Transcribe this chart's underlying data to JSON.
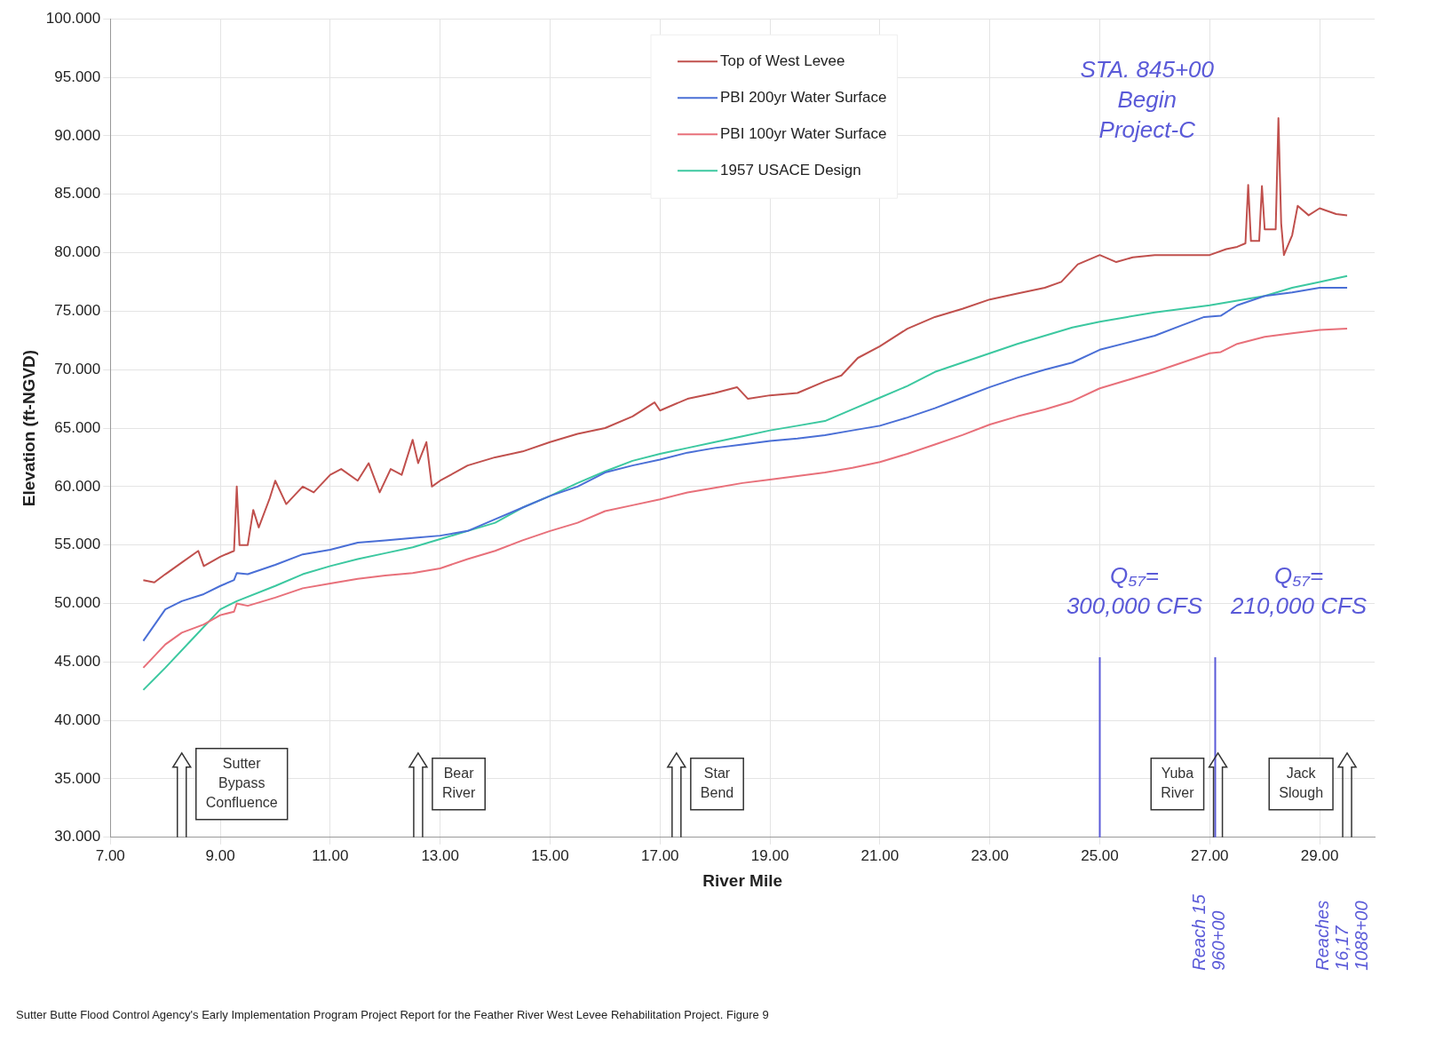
{
  "chart_data": {
    "type": "line",
    "xlabel": "River Mile",
    "ylabel": "Elevation (ft-NGVD)",
    "xlim": [
      7,
      30
    ],
    "ylim": [
      30,
      100
    ],
    "xticks": [
      {
        "value": 7,
        "label": "7.00"
      },
      {
        "value": 9,
        "label": "9.00"
      },
      {
        "value": 11,
        "label": "11.00"
      },
      {
        "value": 13,
        "label": "13.00"
      },
      {
        "value": 15,
        "label": "15.00"
      },
      {
        "value": 17,
        "label": "17.00"
      },
      {
        "value": 19,
        "label": "19.00"
      },
      {
        "value": 21,
        "label": "21.00"
      },
      {
        "value": 23,
        "label": "23.00"
      },
      {
        "value": 25,
        "label": "25.00"
      },
      {
        "value": 27,
        "label": "27.00"
      },
      {
        "value": 29,
        "label": "29.00"
      }
    ],
    "yticks": [
      {
        "value": 30,
        "label": "30.000"
      },
      {
        "value": 35,
        "label": "35.000"
      },
      {
        "value": 40,
        "label": "40.000"
      },
      {
        "value": 45,
        "label": "45.000"
      },
      {
        "value": 50,
        "label": "50.000"
      },
      {
        "value": 55,
        "label": "55.000"
      },
      {
        "value": 60,
        "label": "60.000"
      },
      {
        "value": 65,
        "label": "65.000"
      },
      {
        "value": 70,
        "label": "70.000"
      },
      {
        "value": 75,
        "label": "75.000"
      },
      {
        "value": 80,
        "label": "80.000"
      },
      {
        "value": 85,
        "label": "85.000"
      },
      {
        "value": 90,
        "label": "90.000"
      },
      {
        "value": 95,
        "label": "95.000"
      },
      {
        "value": 100,
        "label": "100.000"
      }
    ],
    "grid": true,
    "legend": "top",
    "marker": "none",
    "line_style": "solid",
    "series": [
      {
        "name": "Top of West Levee",
        "color": "#c0504d",
        "x": [
          7.6,
          7.8,
          8.0,
          8.3,
          8.6,
          8.7,
          9.0,
          9.25,
          9.3,
          9.35,
          9.5,
          9.6,
          9.7,
          9.9,
          10.0,
          10.2,
          10.5,
          10.7,
          11.0,
          11.2,
          11.5,
          11.7,
          11.9,
          12.1,
          12.3,
          12.5,
          12.6,
          12.75,
          12.85,
          13.0,
          13.5,
          14.0,
          14.5,
          15.0,
          15.5,
          16.0,
          16.5,
          16.9,
          17.0,
          17.5,
          18.0,
          18.4,
          18.6,
          19.0,
          19.5,
          20.0,
          20.3,
          20.6,
          21.0,
          21.5,
          22.0,
          22.5,
          23.0,
          23.5,
          24.0,
          24.3,
          24.6,
          25.0,
          25.3,
          25.6,
          26.0,
          26.5,
          27.0,
          27.3,
          27.5,
          27.65,
          27.7,
          27.75,
          27.9,
          27.95,
          28.0,
          28.2,
          28.25,
          28.3,
          28.35,
          28.5,
          28.6,
          28.8,
          29.0,
          29.3,
          29.5
        ],
        "values": [
          52.0,
          51.8,
          52.5,
          53.5,
          54.5,
          53.2,
          54.0,
          54.5,
          60.0,
          55.0,
          55.0,
          58.0,
          56.5,
          59.0,
          60.5,
          58.5,
          60.0,
          59.5,
          61.0,
          61.5,
          60.5,
          62.0,
          59.5,
          61.5,
          61.0,
          64.0,
          62.0,
          63.8,
          60.0,
          60.5,
          61.8,
          62.5,
          63.0,
          63.8,
          64.5,
          65.0,
          66.0,
          67.2,
          66.5,
          67.5,
          68.0,
          68.5,
          67.5,
          67.8,
          68.0,
          69.0,
          69.5,
          71.0,
          72.0,
          73.5,
          74.5,
          75.2,
          76.0,
          76.5,
          77.0,
          77.5,
          79.0,
          79.8,
          79.2,
          79.6,
          79.8,
          79.8,
          79.8,
          80.3,
          80.5,
          80.8,
          85.8,
          81.0,
          81.0,
          85.7,
          82.0,
          82.0,
          91.5,
          82.5,
          79.8,
          81.5,
          84.0,
          83.2,
          83.8,
          83.3,
          83.2
        ]
      },
      {
        "name": "PBI 200yr Water Surface",
        "color": "#4a6fd6",
        "x": [
          7.6,
          8.0,
          8.3,
          8.7,
          9.0,
          9.25,
          9.3,
          9.5,
          10.0,
          10.5,
          11.0,
          11.5,
          12.0,
          12.5,
          13.0,
          13.5,
          14.0,
          14.5,
          15.0,
          15.5,
          16.0,
          16.5,
          17.0,
          17.5,
          18.0,
          18.5,
          19.0,
          19.5,
          20.0,
          20.5,
          21.0,
          21.5,
          22.0,
          22.5,
          23.0,
          23.5,
          24.0,
          24.5,
          25.0,
          25.5,
          26.0,
          26.5,
          26.9,
          27.2,
          27.5,
          28.0,
          28.5,
          29.0,
          29.5
        ],
        "values": [
          46.8,
          49.5,
          50.2,
          50.8,
          51.5,
          52.0,
          52.6,
          52.5,
          53.3,
          54.2,
          54.6,
          55.2,
          55.4,
          55.6,
          55.8,
          56.2,
          57.2,
          58.2,
          59.2,
          60.0,
          61.2,
          61.8,
          62.3,
          62.9,
          63.3,
          63.6,
          63.9,
          64.1,
          64.4,
          64.8,
          65.2,
          65.9,
          66.7,
          67.6,
          68.5,
          69.3,
          70.0,
          70.6,
          71.7,
          72.3,
          72.9,
          73.8,
          74.5,
          74.6,
          75.5,
          76.3,
          76.6,
          77.0,
          77.0
        ]
      },
      {
        "name": "PBI 100yr Water Surface",
        "color": "#e8707a",
        "x": [
          7.6,
          8.0,
          8.3,
          8.7,
          9.0,
          9.25,
          9.3,
          9.5,
          10.0,
          10.5,
          11.0,
          11.5,
          12.0,
          12.5,
          13.0,
          13.5,
          14.0,
          14.5,
          15.0,
          15.5,
          16.0,
          16.5,
          17.0,
          17.5,
          18.0,
          18.5,
          19.0,
          19.5,
          20.0,
          20.5,
          21.0,
          21.5,
          22.0,
          22.5,
          23.0,
          23.5,
          24.0,
          24.5,
          25.0,
          25.5,
          26.0,
          26.5,
          27.0,
          27.2,
          27.5,
          28.0,
          28.5,
          29.0,
          29.5
        ],
        "values": [
          44.5,
          46.5,
          47.5,
          48.2,
          49.0,
          49.3,
          50.0,
          49.8,
          50.5,
          51.3,
          51.7,
          52.1,
          52.4,
          52.6,
          53.0,
          53.8,
          54.5,
          55.4,
          56.2,
          56.9,
          57.9,
          58.4,
          58.9,
          59.5,
          59.9,
          60.3,
          60.6,
          60.9,
          61.2,
          61.6,
          62.1,
          62.8,
          63.6,
          64.4,
          65.3,
          66.0,
          66.6,
          67.3,
          68.4,
          69.1,
          69.8,
          70.6,
          71.4,
          71.5,
          72.2,
          72.8,
          73.1,
          73.4,
          73.5
        ]
      },
      {
        "name": "1957 USACE Design",
        "color": "#3cc8a0",
        "x": [
          7.6,
          8.0,
          8.5,
          9.0,
          9.3,
          10.0,
          10.5,
          11.0,
          11.5,
          12.0,
          12.5,
          13.0,
          13.5,
          14.0,
          14.5,
          15.0,
          15.5,
          16.0,
          16.5,
          17.0,
          17.5,
          18.0,
          18.5,
          19.0,
          19.5,
          20.0,
          20.5,
          21.0,
          21.5,
          22.0,
          22.5,
          23.0,
          23.5,
          24.0,
          24.5,
          25.0,
          25.5,
          26.0,
          26.5,
          27.0,
          27.5,
          28.0,
          28.5,
          29.0,
          29.5
        ],
        "values": [
          42.6,
          44.5,
          47.0,
          49.5,
          50.2,
          51.5,
          52.5,
          53.2,
          53.8,
          54.3,
          54.8,
          55.5,
          56.2,
          56.9,
          58.2,
          59.2,
          60.3,
          61.3,
          62.2,
          62.8,
          63.3,
          63.8,
          64.3,
          64.8,
          65.2,
          65.6,
          66.6,
          67.6,
          68.6,
          69.8,
          70.6,
          71.4,
          72.2,
          72.9,
          73.6,
          74.1,
          74.5,
          74.9,
          75.2,
          75.5,
          75.9,
          76.3,
          77.0,
          77.5,
          78.0
        ]
      }
    ],
    "ref_lines": [
      {
        "axis": "x",
        "value": 25.0,
        "color": "#5a5ad8"
      },
      {
        "axis": "x",
        "value": 27.1,
        "color": "#5a5ad8"
      },
      {
        "axis": "x",
        "value": 8.3,
        "label": "Sutter\nBypass\nConfluence",
        "color": "#333333"
      },
      {
        "axis": "x",
        "value": 12.6,
        "label": "Bear\nRiver",
        "color": "#333333"
      },
      {
        "axis": "x",
        "value": 17.3,
        "label": "Star\nBend",
        "color": "#333333"
      },
      {
        "axis": "x",
        "value": 27.15,
        "label": "Yuba\nRiver",
        "color": "#333333"
      },
      {
        "axis": "x",
        "value": 29.5,
        "label": "Jack\nSlough",
        "color": "#333333"
      }
    ],
    "annotations": [
      "STA. 845+00\nBegin\nProject-C",
      "Q₅₇=\n300,000 CFS",
      "Q₅₇=\n210,000 CFS",
      "Reach 15\n960+00",
      "Reaches\n16,17\n1088+00",
      "Sutter Butte Flood Control Agency's Early Implementation Program Project Report for the Feather River West Levee Rehabilitation Project. Figure 9"
    ]
  }
}
